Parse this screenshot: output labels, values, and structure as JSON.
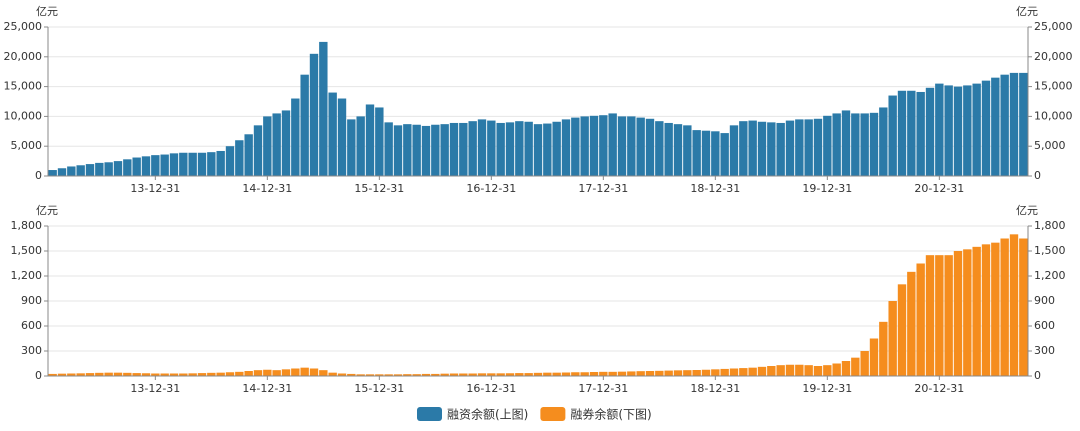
{
  "chart_data": [
    {
      "type": "bar",
      "y_label": "亿元",
      "categories": [
        null,
        null,
        null,
        null,
        null,
        null,
        null,
        null,
        null,
        null,
        null,
        "13-12-31",
        null,
        null,
        null,
        null,
        null,
        null,
        null,
        null,
        null,
        null,
        null,
        "14-12-31",
        null,
        null,
        null,
        null,
        null,
        null,
        null,
        null,
        null,
        null,
        null,
        "15-12-31",
        null,
        null,
        null,
        null,
        null,
        null,
        null,
        null,
        null,
        null,
        null,
        "16-12-31",
        null,
        null,
        null,
        null,
        null,
        null,
        null,
        null,
        null,
        null,
        null,
        "17-12-31",
        null,
        null,
        null,
        null,
        null,
        null,
        null,
        null,
        null,
        null,
        null,
        "18-12-31",
        null,
        null,
        null,
        null,
        null,
        null,
        null,
        null,
        null,
        null,
        null,
        "19-12-31",
        null,
        null,
        null,
        null,
        null,
        null,
        null,
        null,
        null,
        null,
        null,
        "20-12-31",
        null,
        null,
        null,
        null,
        null,
        null,
        null,
        null,
        null
      ],
      "series": [
        {
          "name": "融资余额(上图)",
          "color": "#2b7aa8",
          "values": [
            1000,
            1300,
            1600,
            1800,
            2000,
            2200,
            2300,
            2500,
            2800,
            3100,
            3300,
            3500,
            3600,
            3800,
            3900,
            3900,
            3900,
            4000,
            4200,
            5000,
            6000,
            7000,
            8500,
            10000,
            10500,
            11000,
            13000,
            17000,
            20500,
            22500,
            14000,
            13000,
            9500,
            10000,
            12000,
            11500,
            9000,
            8500,
            8700,
            8600,
            8400,
            8600,
            8700,
            8900,
            8900,
            9200,
            9500,
            9300,
            8900,
            9000,
            9200,
            9100,
            8700,
            8800,
            9100,
            9500,
            9800,
            10000,
            10100,
            10200,
            10500,
            10000,
            10000,
            9800,
            9600,
            9200,
            8900,
            8700,
            8500,
            7700,
            7600,
            7500,
            7200,
            8500,
            9200,
            9300,
            9100,
            9000,
            8900,
            9300,
            9500,
            9500,
            9600,
            10100,
            10500,
            11000,
            10500,
            10500,
            10600,
            11500,
            13500,
            14300,
            14300,
            14100,
            14800,
            15500,
            15200,
            15000,
            15200,
            15500,
            16000,
            16500,
            17000,
            17300,
            17300
          ]
        }
      ],
      "ylim": [
        0,
        25000
      ],
      "yticks": [
        0,
        {
          "value": 5000,
          "label": "5,000"
        },
        {
          "value": 10000,
          "label": "10,000"
        },
        {
          "value": 15000,
          "label": "15,000"
        },
        {
          "value": 20000,
          "label": "20,000"
        },
        {
          "value": 25000,
          "label": "25,000"
        }
      ],
      "grid": true
    },
    {
      "type": "bar",
      "y_label": "亿元",
      "categories": [
        null,
        null,
        null,
        null,
        null,
        null,
        null,
        null,
        null,
        null,
        null,
        "13-12-31",
        null,
        null,
        null,
        null,
        null,
        null,
        null,
        null,
        null,
        null,
        null,
        "14-12-31",
        null,
        null,
        null,
        null,
        null,
        null,
        null,
        null,
        null,
        null,
        null,
        "15-12-31",
        null,
        null,
        null,
        null,
        null,
        null,
        null,
        null,
        null,
        null,
        null,
        "16-12-31",
        null,
        null,
        null,
        null,
        null,
        null,
        null,
        null,
        null,
        null,
        null,
        "17-12-31",
        null,
        null,
        null,
        null,
        null,
        null,
        null,
        null,
        null,
        null,
        null,
        "18-12-31",
        null,
        null,
        null,
        null,
        null,
        null,
        null,
        null,
        null,
        null,
        null,
        "19-12-31",
        null,
        null,
        null,
        null,
        null,
        null,
        null,
        null,
        null,
        null,
        null,
        "20-12-31",
        null,
        null,
        null,
        null,
        null,
        null,
        null,
        null,
        null
      ],
      "series": [
        {
          "name": "融券余额(下图)",
          "color": "#f58d1e",
          "values": [
            25,
            28,
            30,
            32,
            35,
            38,
            40,
            40,
            38,
            35,
            33,
            30,
            30,
            30,
            30,
            32,
            35,
            38,
            40,
            45,
            50,
            60,
            70,
            75,
            70,
            80,
            90,
            100,
            90,
            70,
            40,
            30,
            25,
            20,
            20,
            20,
            20,
            20,
            22,
            22,
            25,
            25,
            28,
            30,
            30,
            30,
            32,
            32,
            32,
            33,
            35,
            35,
            38,
            40,
            40,
            42,
            45,
            45,
            48,
            50,
            50,
            52,
            55,
            58,
            60,
            62,
            65,
            68,
            70,
            72,
            75,
            80,
            85,
            90,
            95,
            100,
            110,
            120,
            130,
            135,
            135,
            130,
            120,
            130,
            150,
            180,
            220,
            300,
            450,
            650,
            900,
            1100,
            1250,
            1350,
            1450,
            1450,
            1450,
            1500,
            1520,
            1550,
            1580,
            1600,
            1650,
            1700,
            1650
          ]
        }
      ],
      "ylim": [
        0,
        1800
      ],
      "yticks": [
        0,
        300,
        600,
        900,
        {
          "value": 1200,
          "label": "1,200"
        },
        {
          "value": 1500,
          "label": "1,500"
        },
        {
          "value": 1800,
          "label": "1,800"
        }
      ],
      "grid": true
    }
  ]
}
